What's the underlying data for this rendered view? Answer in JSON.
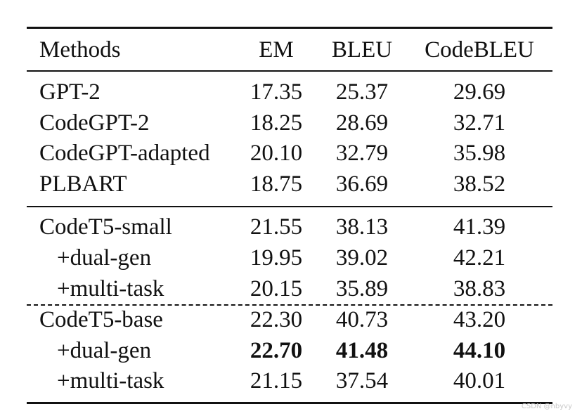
{
  "table": {
    "headers": {
      "method": "Methods",
      "em": "EM",
      "bleu": "BLEU",
      "codebleu": "CodeBLEU"
    },
    "groups": [
      {
        "rows": [
          {
            "method": "GPT-2",
            "em": "17.35",
            "bleu": "25.37",
            "codebleu": "29.69"
          },
          {
            "method": "CodeGPT-2",
            "em": "18.25",
            "bleu": "28.69",
            "codebleu": "32.71"
          },
          {
            "method": "CodeGPT-adapted",
            "em": "20.10",
            "bleu": "32.79",
            "codebleu": "35.98"
          },
          {
            "method": "PLBART",
            "em": "18.75",
            "bleu": "36.69",
            "codebleu": "38.52"
          }
        ]
      },
      {
        "rows": [
          {
            "method": "CodeT5-small",
            "em": "21.55",
            "bleu": "38.13",
            "codebleu": "41.39"
          },
          {
            "method": "+dual-gen",
            "em": "19.95",
            "bleu": "39.02",
            "codebleu": "42.21"
          },
          {
            "method": "+multi-task",
            "em": "20.15",
            "bleu": "35.89",
            "codebleu": "38.83"
          }
        ]
      },
      {
        "rows": [
          {
            "method": "CodeT5-base",
            "em": "22.30",
            "bleu": "40.73",
            "codebleu": "43.20"
          },
          {
            "method": "+dual-gen",
            "em": "22.70",
            "bleu": "41.48",
            "codebleu": "44.10"
          },
          {
            "method": "+multi-task",
            "em": "21.15",
            "bleu": "37.54",
            "codebleu": "40.01"
          }
        ]
      }
    ]
  },
  "watermark": "CSDN @nbyvy"
}
